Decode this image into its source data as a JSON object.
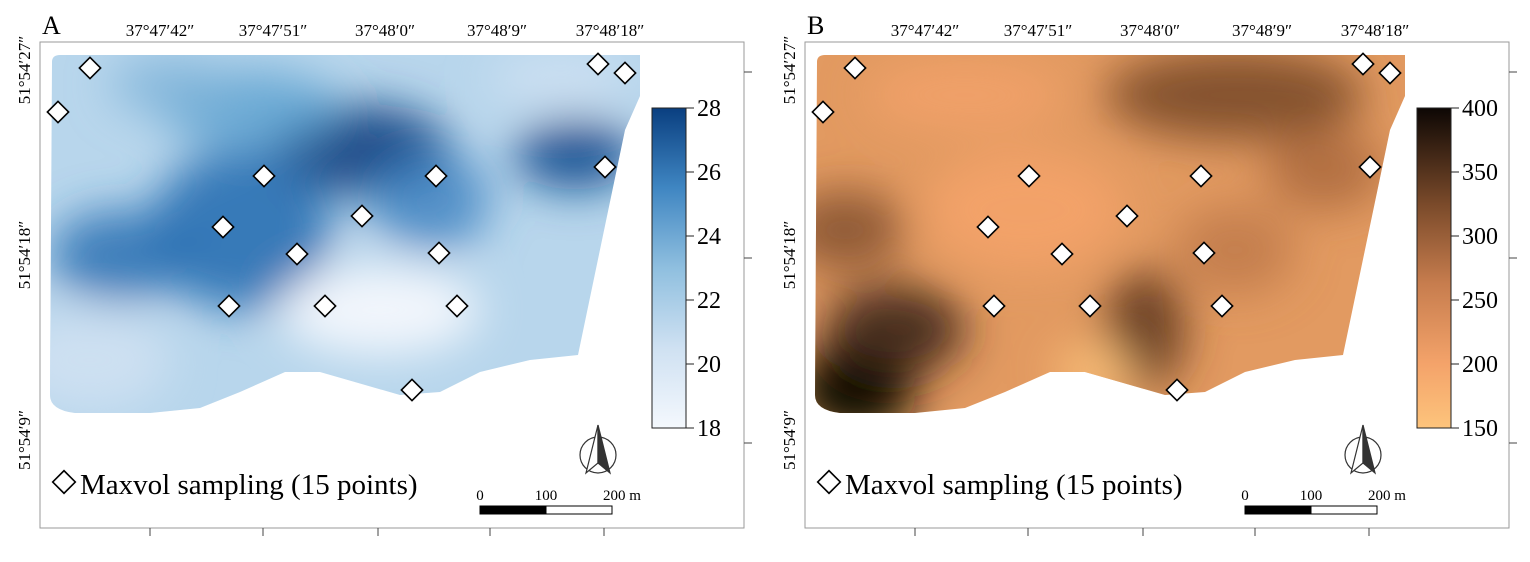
{
  "panels": [
    {
      "id": "A",
      "letter": "A",
      "ramp": [
        "#f4f8fd",
        "#cfe1f2",
        "#9ec9e2",
        "#5aa0cf",
        "#2a70b3",
        "#0a3f80"
      ],
      "colorbar": {
        "ticks": [
          "28",
          "26",
          "24",
          "22",
          "20",
          "18"
        ]
      },
      "lon_labels": [
        "37°47′42″",
        "37°47′51″",
        "37°48′0″",
        "37°48′9″",
        "37°48′18″"
      ],
      "lat_labels": [
        "51°54′27″",
        "51°54′18″",
        "51°54′9″"
      ],
      "legend_label": "Maxvol sampling (15 points)",
      "scale_labels": [
        "0",
        "100",
        "200 m"
      ]
    },
    {
      "id": "B",
      "letter": "B",
      "ramp": [
        "#fdc47c",
        "#f4a36a",
        "#d98a57",
        "#a8653c",
        "#5e3920",
        "#0d0704"
      ],
      "colorbar": {
        "ticks": [
          "400",
          "350",
          "300",
          "250",
          "200",
          "150"
        ]
      },
      "lon_labels": [
        "37°47′42″",
        "37°47′51″",
        "37°48′0″",
        "37°48′9″",
        "37°48′18″"
      ],
      "lat_labels": [
        "51°54′27″",
        "51°54′18″",
        "51°54′9″"
      ],
      "legend_label": "Maxvol sampling (15 points)",
      "scale_labels": [
        "0",
        "100",
        "200 m"
      ]
    }
  ]
}
